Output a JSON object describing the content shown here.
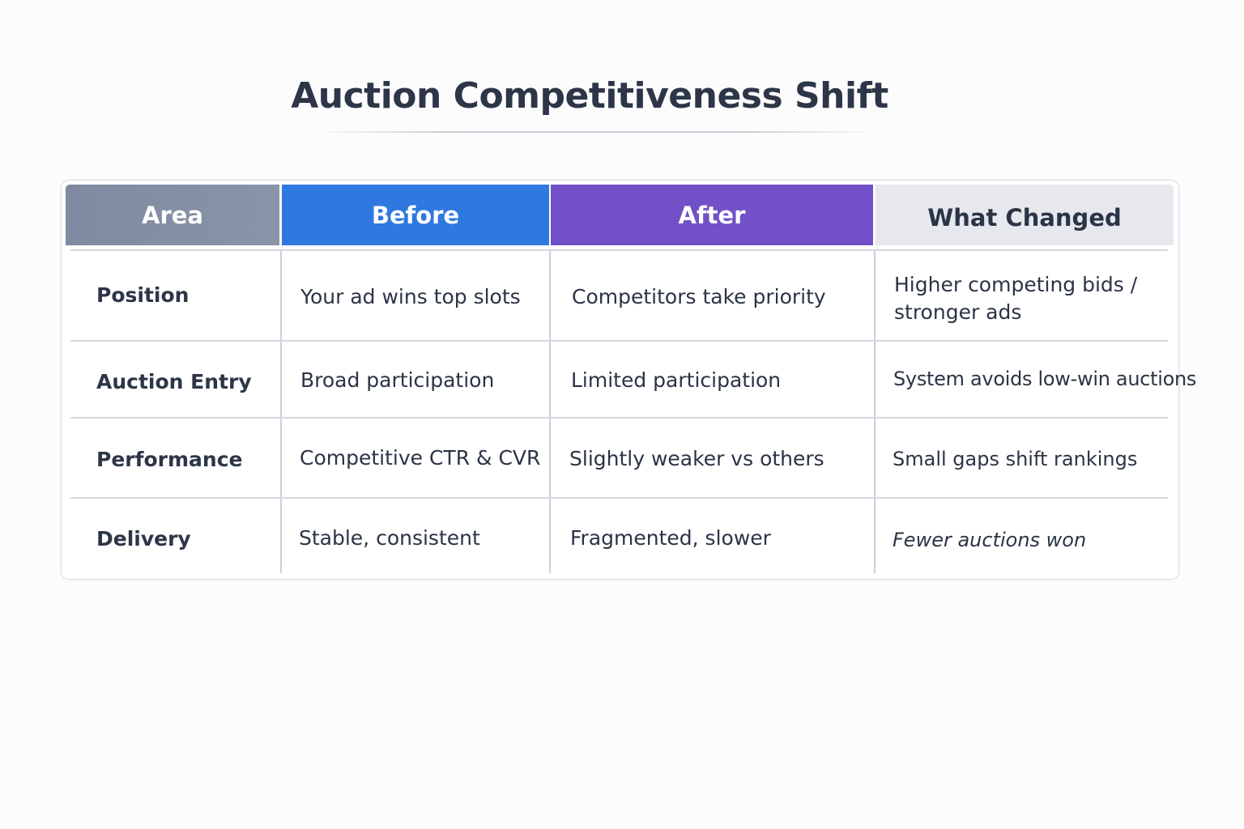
{
  "title": "Auction Competitiveness Shift",
  "table": {
    "headers": {
      "area": "Area",
      "before": "Before",
      "after": "After",
      "changed": "What Changed"
    },
    "rows": [
      {
        "area": "Position",
        "before": "Your ad wins top slots",
        "after": "Competitors take priority",
        "changed_line1": "Higher competing bids /",
        "changed_line2": "stronger ads"
      },
      {
        "area": "Auction Entry",
        "before": "Broad participation",
        "after": "Limited participation",
        "changed": "System avoids low-win auctions"
      },
      {
        "area": "Performance",
        "before": "Competitive CTR & CVR",
        "after": "Slightly weaker vs others",
        "changed": "Small gaps shift rankings"
      },
      {
        "area": "Delivery",
        "before": "Stable, consistent",
        "after": "Fragmented, slower",
        "changed": "Fewer auctions won"
      }
    ]
  },
  "colors": {
    "area_header": "#8490a5",
    "before_header": "#2f78e0",
    "after_header": "#7250c8",
    "changed_header": "#e6e8ee",
    "text": "#2b3445"
  }
}
